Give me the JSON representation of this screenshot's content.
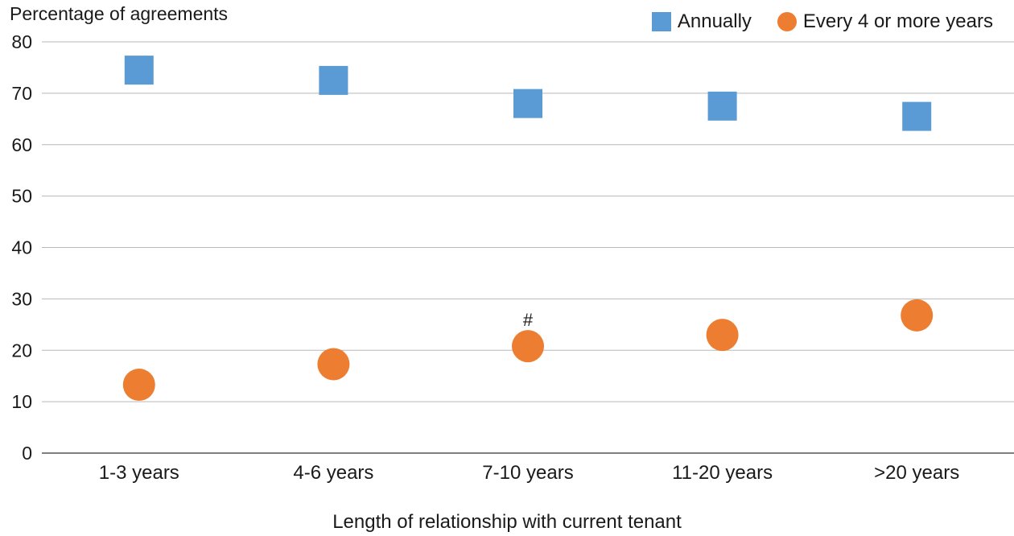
{
  "chart_data": {
    "type": "scatter",
    "ylabel": "Percentage of agreements",
    "xlabel": "Length of relationship with current tenant",
    "categories": [
      "1-3 years",
      "4-6 years",
      "7-10 years",
      "11-20 years",
      ">20 years"
    ],
    "ylim": [
      0,
      80
    ],
    "yticks": [
      0,
      10,
      20,
      30,
      40,
      50,
      60,
      70,
      80
    ],
    "grid": true,
    "legend_position": "top-right",
    "series": [
      {
        "name": "Annually",
        "marker": "square",
        "color": "#5b9bd5",
        "values": [
          74.5,
          72.5,
          68,
          67.5,
          65.5
        ]
      },
      {
        "name": "Every 4 or more years",
        "marker": "circle",
        "color": "#ed7d31",
        "values": [
          13.3,
          17.3,
          20.8,
          23,
          26.8
        ]
      }
    ],
    "annotations": [
      {
        "text": "#",
        "category": "7-10 years",
        "value": 26
      }
    ]
  }
}
